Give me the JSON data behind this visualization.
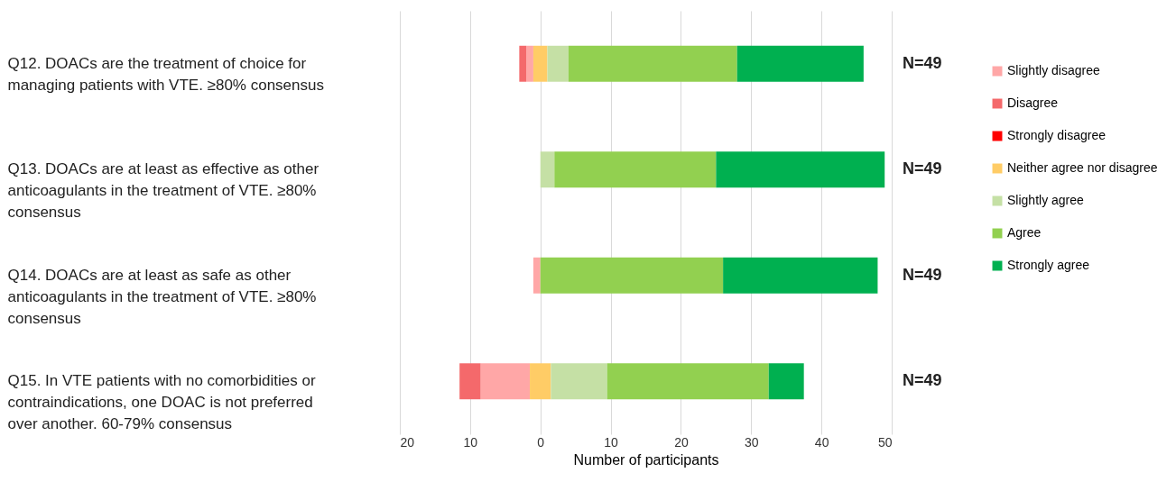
{
  "chart_data": {
    "type": "bar",
    "orientation": "horizontal",
    "xlabel": "Number of participants",
    "categories": [
      "Q12. DOACs are the treatment of choice for managing patients with VTE. ≥80% consensus",
      "Q13. DOACs are at least as effective as other anticoagulants in the treatment of VTE. ≥80% consensus",
      "Q14. DOACs are at least as safe as other anticoagulants in the treatment of VTE. ≥80% consensus",
      "Q15. In VTE patients with no comorbidities or contraindications, one DOAC is not preferred over another. 60-79% consensus"
    ],
    "series": [
      {
        "name": "Slightly disagree",
        "color": "#ffa7a7",
        "base": [
          -2,
          null,
          -1,
          -8.5
        ],
        "values": [
          1,
          null,
          1,
          7
        ]
      },
      {
        "name": "Disagree",
        "color": "#f4696b",
        "base": [
          -3,
          null,
          null,
          -11.5
        ],
        "values": [
          1,
          null,
          null,
          3
        ]
      },
      {
        "name": "Strongly disagree",
        "color": "#ff0000",
        "base": [
          null,
          null,
          null,
          null
        ],
        "values": [
          null,
          null,
          null,
          null
        ]
      },
      {
        "name": "Neither agree nor disagree",
        "color": "#ffcc66",
        "base": [
          -1,
          null,
          null,
          -1.5
        ],
        "values": [
          2,
          null,
          null,
          3
        ]
      },
      {
        "name": "Slightly agree",
        "color": "#c5e0a5",
        "base": [
          1,
          0,
          null,
          1.5
        ],
        "values": [
          3,
          2,
          null,
          8
        ]
      },
      {
        "name": "Agree",
        "color": "#92d050",
        "base": [
          4,
          2,
          0,
          9.5
        ],
        "values": [
          24,
          23,
          26,
          23
        ]
      },
      {
        "name": "Strongly agree",
        "color": "#00b050",
        "base": [
          28,
          25,
          26,
          32.5
        ],
        "values": [
          18,
          24,
          22,
          5
        ]
      }
    ],
    "xlim": [
      -20,
      50
    ],
    "xticks": [
      {
        "value": -20,
        "label": "20"
      },
      {
        "value": -10,
        "label": "10"
      },
      0,
      10,
      20,
      30,
      40,
      50
    ],
    "grid": "x",
    "legend": "right",
    "annotations": [
      "N=49",
      "N=49",
      "N=49",
      "N=49"
    ]
  }
}
